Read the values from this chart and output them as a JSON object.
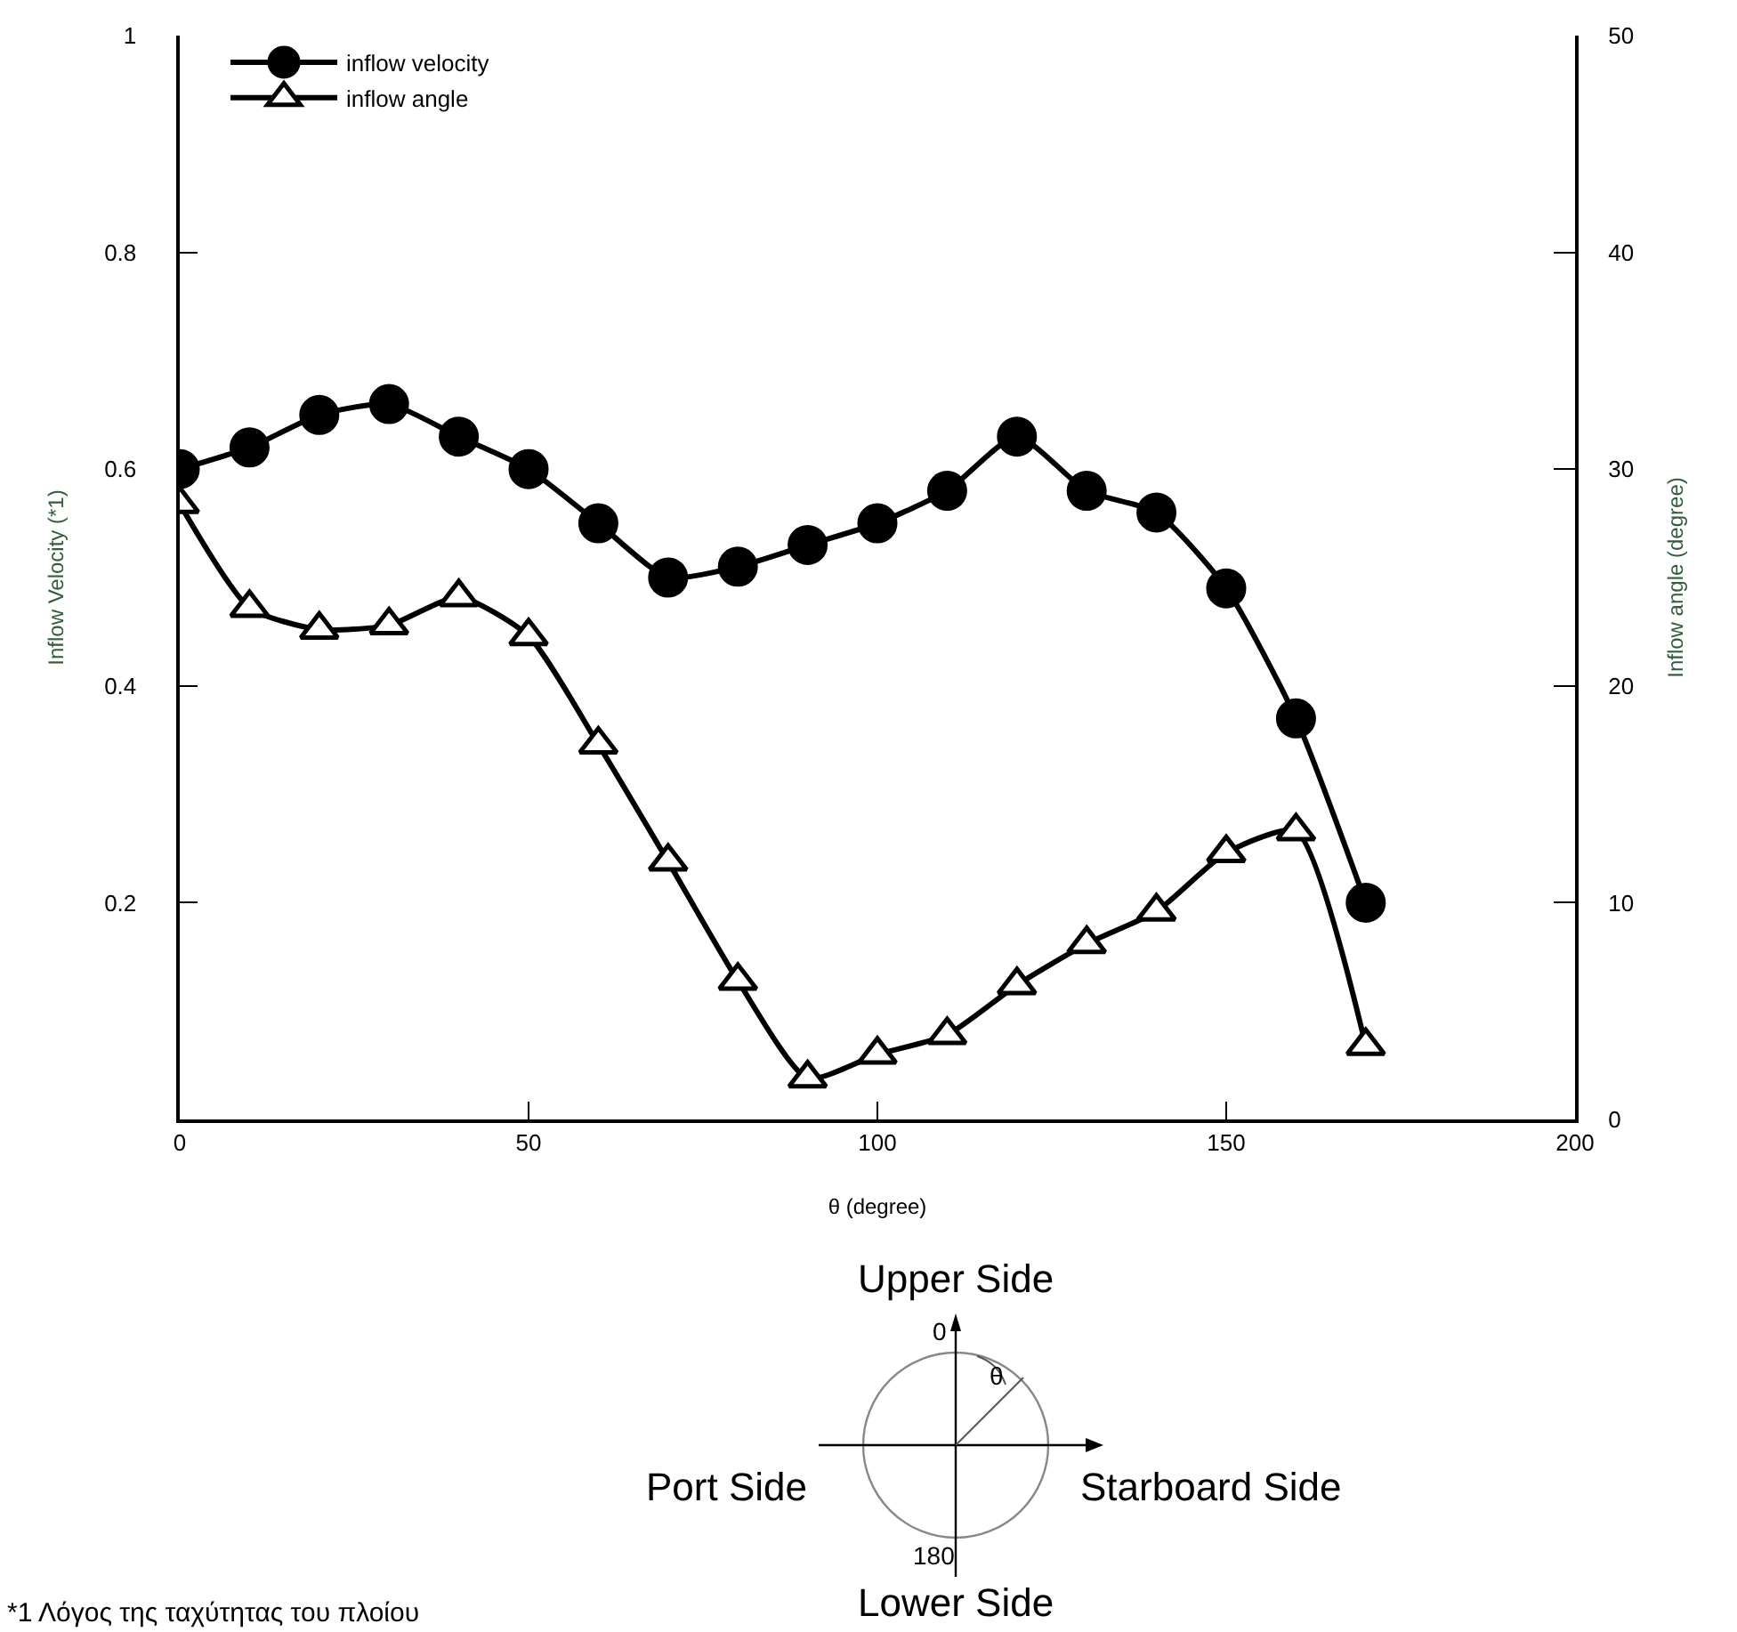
{
  "chart_data": {
    "type": "line",
    "xlabel": "θ (degree)",
    "ylabel": "Inflow Velocity (*1)",
    "y2label": "Inflow angle (degree)",
    "x": [
      0,
      10,
      20,
      30,
      40,
      50,
      60,
      70,
      80,
      90,
      100,
      110,
      120,
      130,
      140,
      150,
      160,
      170
    ],
    "series": [
      {
        "name": "inflow velocity",
        "color": "#000000",
        "marker": "circle",
        "values": [
          0.6,
          0.62,
          0.65,
          0.66,
          0.63,
          0.6,
          0.55,
          0.5,
          0.51,
          0.53,
          0.55,
          0.58,
          0.63,
          0.58,
          0.56,
          0.49,
          0.37,
          0.2
        ]
      },
      {
        "name": "inflow angle",
        "color": "#000000",
        "marker": "triangle",
        "axis": "y2",
        "values": [
          28.4,
          23.6,
          22.6,
          22.8,
          24.1,
          22.3,
          17.3,
          11.9,
          6.4,
          1.9,
          3.0,
          3.9,
          6.2,
          8.1,
          9.6,
          12.3,
          13.3,
          3.4
        ]
      }
    ],
    "xlim": [
      0,
      200
    ],
    "xticks": [
      0,
      50,
      100,
      150,
      200
    ],
    "ylim": [
      0,
      1
    ],
    "yticks": [
      0.2,
      0.4,
      0.6,
      0.8,
      1
    ],
    "y2lim": [
      0,
      50
    ],
    "y2ticks": [
      0,
      10,
      20,
      30,
      40,
      50
    ],
    "legend": "top left",
    "line_style": "solid",
    "annotations": [
      "Upper Side",
      "0",
      "θ",
      "Port Side",
      "Starboard Side",
      "180",
      "Lower Side",
      "*1 Λόγος της ταχύτητας του πλοίου"
    ]
  }
}
